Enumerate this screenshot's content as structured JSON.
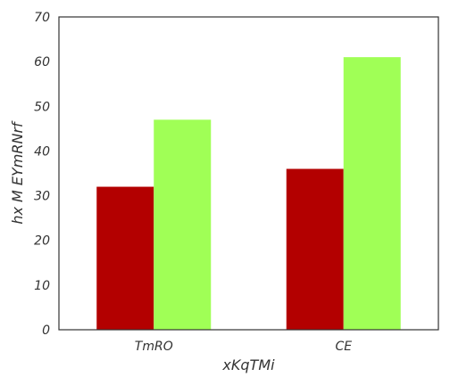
{
  "chart_data": {
    "type": "bar",
    "title": "",
    "xlabel": "xKqTMi",
    "ylabel": "hx M EYmRNrf",
    "categories": [
      "TmRO",
      "CE"
    ],
    "series": [
      {
        "values": [
          32,
          36
        ],
        "color": "#b30000"
      },
      {
        "values": [
          47,
          61
        ],
        "color": "#a0ff56"
      }
    ],
    "ylim": [
      0,
      70
    ],
    "yticks": [
      0,
      10,
      20,
      30,
      40,
      50,
      60,
      70
    ],
    "grid": false,
    "legend": "none"
  }
}
